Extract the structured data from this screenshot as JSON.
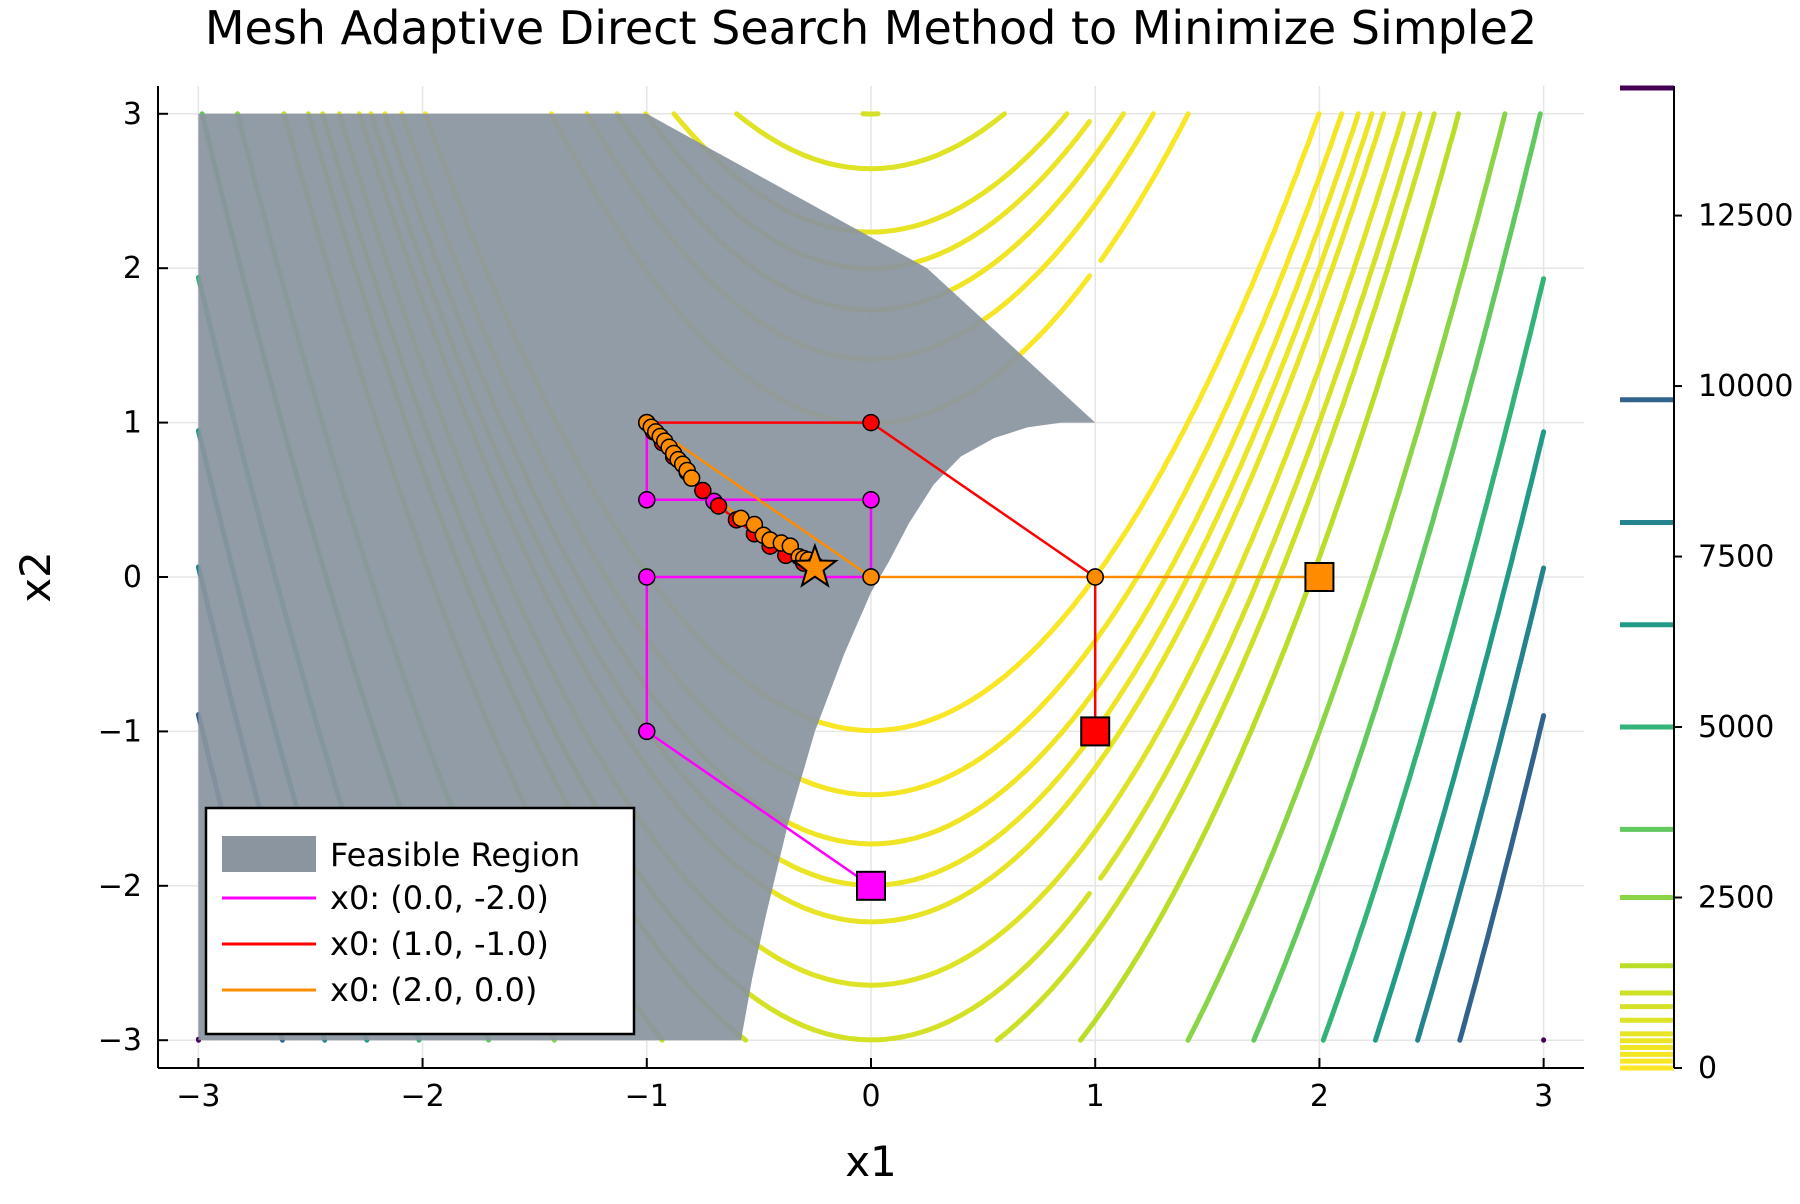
{
  "chart_data": {
    "type": "contour",
    "title": "Mesh Adaptive Direct Search Method to Minimize Simple2",
    "xlabel": "x1",
    "ylabel": "x2",
    "xlim": [
      -3.18,
      3.18
    ],
    "ylim": [
      -3.18,
      3.18
    ],
    "xticks": [
      -3,
      -2,
      -1,
      0,
      1,
      2,
      3
    ],
    "yticks": [
      -3,
      -2,
      -1,
      0,
      1,
      2,
      3
    ],
    "x_tick_labels": [
      "−3",
      "−2",
      "−1",
      "0",
      "1",
      "2",
      "3"
    ],
    "y_tick_labels": [
      "−3",
      "−2",
      "−1",
      "0",
      "1",
      "2",
      "3"
    ],
    "grid": true,
    "legend_position": "bottom-left",
    "colorbar": {
      "colormap": "viridis",
      "range": [
        0,
        14400
      ],
      "ticks": [
        0,
        2500,
        5000,
        7500,
        10000,
        12500
      ],
      "tick_labels": [
        "0",
        "2500",
        "5000",
        "7500",
        "10000",
        "12500"
      ],
      "levels": [
        0,
        100,
        200,
        300,
        400,
        500,
        700,
        900,
        1100,
        1500,
        2500,
        3500,
        5000,
        6500,
        8000,
        9800,
        14400
      ]
    },
    "contour_function": "100*(x2 - x1^2)^2 + (1 - x1)^2",
    "feasible_region": {
      "label": "Feasible Region",
      "color": "#8a95a0",
      "polygon": [
        [
          -3.0,
          3.0
        ],
        [
          -1.0,
          3.0
        ],
        [
          0.25,
          2.0
        ],
        [
          1.0,
          1.0
        ],
        [
          0.85,
          1.0
        ],
        [
          0.7,
          0.97
        ],
        [
          0.55,
          0.9
        ],
        [
          0.4,
          0.78
        ],
        [
          0.28,
          0.6
        ],
        [
          0.17,
          0.35
        ],
        [
          0.08,
          0.1
        ],
        [
          0.0,
          -0.1
        ],
        [
          -0.12,
          -0.5
        ],
        [
          -0.25,
          -1.0
        ],
        [
          -0.37,
          -1.6
        ],
        [
          -0.47,
          -2.2
        ],
        [
          -0.53,
          -2.6
        ],
        [
          -0.58,
          -3.0
        ],
        [
          -3.0,
          -3.0
        ]
      ]
    },
    "series": [
      {
        "name": "x0: (0.0, -2.0)",
        "color": "#ff00ff",
        "start": [
          0.0,
          -2.0
        ],
        "x": [
          0.0,
          -1.0,
          -1.0,
          0.0,
          0.0,
          -1.0,
          -1.0,
          -0.7
        ],
        "y": [
          -2.0,
          -1.0,
          0.0,
          0.0,
          0.5,
          0.5,
          1.0,
          0.49
        ]
      },
      {
        "name": "x0: (1.0, -1.0)",
        "color": "#ff0000",
        "start": [
          1.0,
          -1.0
        ],
        "x": [
          1.0,
          1.0,
          0.0,
          -1.0,
          -0.97,
          -0.93,
          -0.88,
          -0.82,
          -0.75,
          -0.68,
          -0.6,
          -0.52,
          -0.45,
          -0.38,
          -0.3,
          -0.25
        ],
        "y": [
          -1.0,
          0.0,
          1.0,
          1.0,
          0.94,
          0.87,
          0.78,
          0.68,
          0.56,
          0.46,
          0.37,
          0.28,
          0.2,
          0.14,
          0.09,
          0.06
        ]
      },
      {
        "name": "x0: (2.0, 0.0)",
        "color": "#ff8c00",
        "start": [
          2.0,
          0.0
        ],
        "end_marker": [
          -0.25,
          0.06
        ],
        "x": [
          2.0,
          1.0,
          0.0,
          -1.0,
          -0.98,
          -0.96,
          -0.94,
          -0.92,
          -0.9,
          -0.88,
          -0.86,
          -0.84,
          -0.82,
          -0.8,
          -0.58,
          -0.52,
          -0.48,
          -0.45,
          -0.4,
          -0.36,
          -0.32,
          -0.3,
          -0.28,
          -0.25
        ],
        "y": [
          0.0,
          0.0,
          0.0,
          1.0,
          0.97,
          0.94,
          0.91,
          0.88,
          0.84,
          0.8,
          0.76,
          0.73,
          0.69,
          0.64,
          0.38,
          0.34,
          0.27,
          0.24,
          0.22,
          0.2,
          0.13,
          0.12,
          0.11,
          0.08
        ]
      }
    ]
  }
}
